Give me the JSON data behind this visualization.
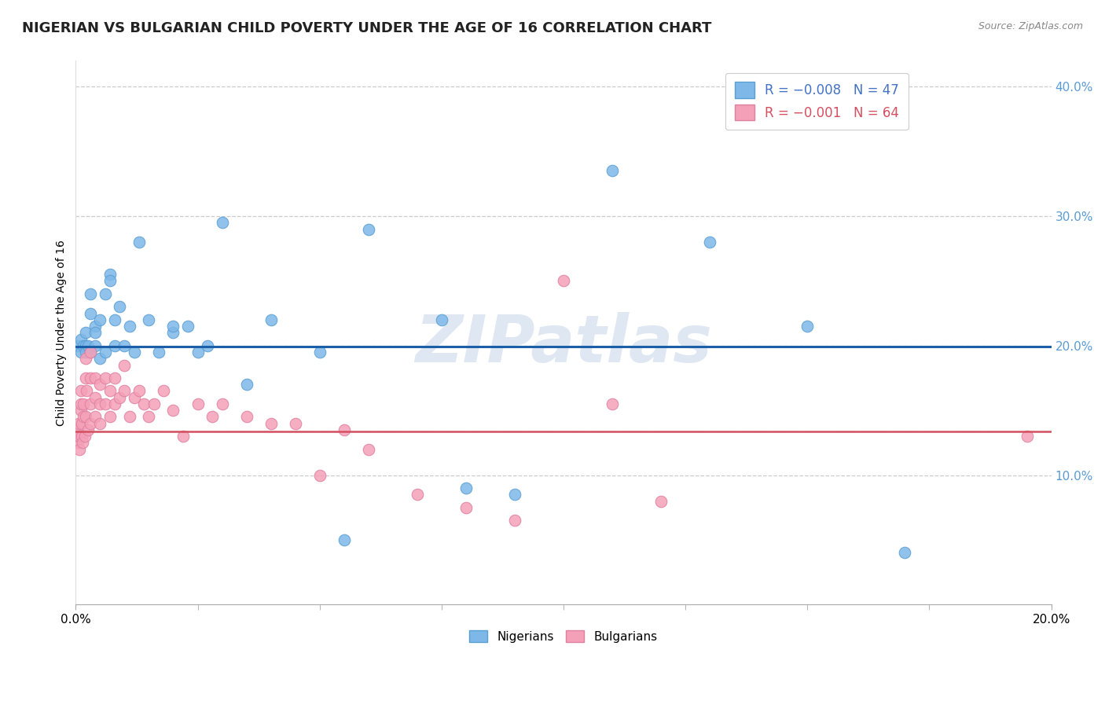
{
  "title": "NIGERIAN VS BULGARIAN CHILD POVERTY UNDER THE AGE OF 16 CORRELATION CHART",
  "source": "Source: ZipAtlas.com",
  "xlim": [
    0.0,
    0.2
  ],
  "ylim": [
    0.0,
    0.42
  ],
  "nigerian_x": [
    0.0005,
    0.001,
    0.001,
    0.0015,
    0.002,
    0.002,
    0.002,
    0.0025,
    0.003,
    0.003,
    0.003,
    0.004,
    0.004,
    0.004,
    0.005,
    0.005,
    0.006,
    0.006,
    0.007,
    0.007,
    0.008,
    0.008,
    0.009,
    0.01,
    0.011,
    0.012,
    0.013,
    0.015,
    0.017,
    0.02,
    0.023,
    0.027,
    0.03,
    0.04,
    0.05,
    0.06,
    0.075,
    0.09,
    0.11,
    0.13,
    0.15,
    0.17,
    0.02,
    0.025,
    0.035,
    0.055,
    0.08
  ],
  "nigerian_y": [
    0.2,
    0.195,
    0.205,
    0.2,
    0.2,
    0.195,
    0.21,
    0.2,
    0.225,
    0.24,
    0.195,
    0.2,
    0.215,
    0.21,
    0.19,
    0.22,
    0.24,
    0.195,
    0.255,
    0.25,
    0.2,
    0.22,
    0.23,
    0.2,
    0.215,
    0.195,
    0.28,
    0.22,
    0.195,
    0.21,
    0.215,
    0.2,
    0.295,
    0.22,
    0.195,
    0.29,
    0.22,
    0.085,
    0.335,
    0.28,
    0.215,
    0.04,
    0.215,
    0.195,
    0.17,
    0.05,
    0.09
  ],
  "bulgarian_x": [
    0.0003,
    0.0004,
    0.0005,
    0.0006,
    0.0007,
    0.0008,
    0.001,
    0.001,
    0.001,
    0.0012,
    0.0013,
    0.0014,
    0.0015,
    0.0016,
    0.0018,
    0.002,
    0.002,
    0.002,
    0.0022,
    0.0025,
    0.003,
    0.003,
    0.003,
    0.003,
    0.004,
    0.004,
    0.004,
    0.005,
    0.005,
    0.005,
    0.006,
    0.006,
    0.007,
    0.007,
    0.008,
    0.008,
    0.009,
    0.01,
    0.01,
    0.011,
    0.012,
    0.013,
    0.014,
    0.015,
    0.016,
    0.018,
    0.02,
    0.022,
    0.025,
    0.028,
    0.03,
    0.035,
    0.04,
    0.045,
    0.05,
    0.055,
    0.06,
    0.07,
    0.08,
    0.09,
    0.1,
    0.11,
    0.12,
    0.195
  ],
  "bulgarian_y": [
    0.13,
    0.135,
    0.125,
    0.14,
    0.12,
    0.13,
    0.15,
    0.165,
    0.155,
    0.14,
    0.13,
    0.125,
    0.155,
    0.145,
    0.13,
    0.19,
    0.175,
    0.145,
    0.165,
    0.135,
    0.195,
    0.175,
    0.155,
    0.14,
    0.175,
    0.16,
    0.145,
    0.17,
    0.155,
    0.14,
    0.175,
    0.155,
    0.165,
    0.145,
    0.175,
    0.155,
    0.16,
    0.185,
    0.165,
    0.145,
    0.16,
    0.165,
    0.155,
    0.145,
    0.155,
    0.165,
    0.15,
    0.13,
    0.155,
    0.145,
    0.155,
    0.145,
    0.14,
    0.14,
    0.1,
    0.135,
    0.12,
    0.085,
    0.075,
    0.065,
    0.25,
    0.155,
    0.08,
    0.13
  ],
  "nigerian_color": "#7eb8e8",
  "bulgarian_color": "#f4a0b8",
  "nigerian_edge": "#5a9fd4",
  "bulgarian_edge": "#e080a0",
  "nigerian_regression_y": 0.199,
  "bulgarian_regression_y": 0.134,
  "regression_blue": "#1a5fa8",
  "regression_pink": "#d45060",
  "marker_size": 110,
  "background_color": "#ffffff",
  "grid_color": "#cccccc",
  "watermark": "ZIPatlas",
  "title_fontsize": 13,
  "axis_label_fontsize": 10,
  "tick_fontsize": 11,
  "legend_r_blue": "R = −0.008   N = 47",
  "legend_r_pink": "R = −0.001   N = 64"
}
